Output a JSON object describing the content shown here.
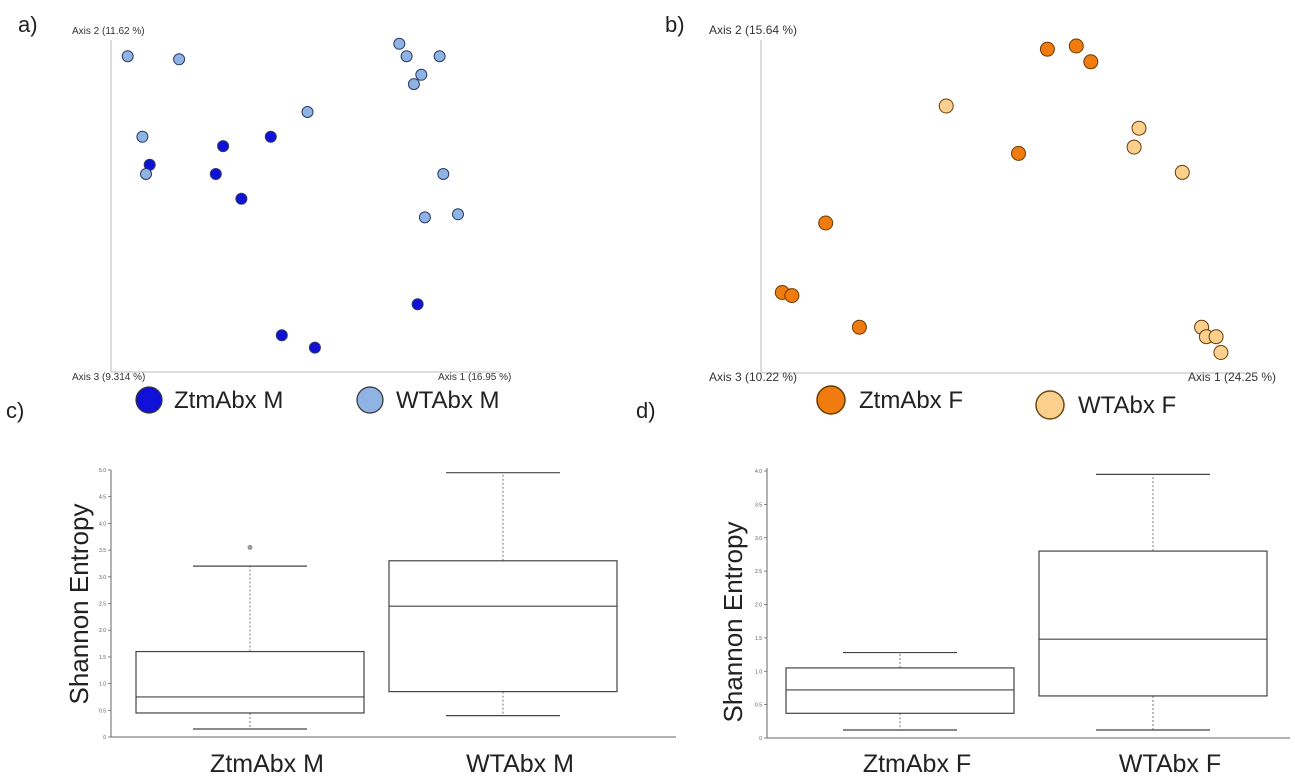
{
  "panels": {
    "a": {
      "letter": "a)"
    },
    "b": {
      "letter": "b)"
    },
    "c": {
      "letter": "c)"
    },
    "d": {
      "letter": "d)"
    }
  },
  "colors": {
    "ztm_m": "#1010d8",
    "wt_m": "#8fb4e3",
    "ztm_f": "#f07b0e",
    "wt_f": "#fbd08e",
    "axis_line": "#bbbbbb",
    "box_line": "#444444"
  },
  "chart_data": [
    {
      "id": "a",
      "type": "scatter",
      "title": "",
      "axis1_label": "Axis 1 (16.95 %)",
      "axis2_label": "Axis 2 (11.62 %)",
      "axis3_label": "Axis 3 (9.314 %)",
      "xlim": [
        0,
        1
      ],
      "ylim": [
        0,
        1
      ],
      "grid": false,
      "legend": {
        "position": "bottom",
        "entries": [
          "ZtmAbx M",
          "WTAbx M"
        ]
      },
      "series": [
        {
          "name": "ZtmAbx M",
          "color_key": "ztm_m",
          "points": [
            [
              0.1,
              0.63
            ],
            [
              0.3,
              0.69
            ],
            [
              0.43,
              0.72
            ],
            [
              0.28,
              0.6
            ],
            [
              0.35,
              0.52
            ],
            [
              0.46,
              0.08
            ],
            [
              0.55,
              0.04
            ],
            [
              0.83,
              0.18
            ]
          ]
        },
        {
          "name": "WTAbx M",
          "color_key": "wt_m",
          "points": [
            [
              0.04,
              0.98
            ],
            [
              0.18,
              0.97
            ],
            [
              0.08,
              0.72
            ],
            [
              0.09,
              0.6
            ],
            [
              0.53,
              0.8
            ],
            [
              0.78,
              1.02
            ],
            [
              0.8,
              0.98
            ],
            [
              0.82,
              0.89
            ],
            [
              0.84,
              0.92
            ],
            [
              0.89,
              0.98
            ],
            [
              0.9,
              0.6
            ],
            [
              0.85,
              0.46
            ],
            [
              0.94,
              0.47
            ]
          ]
        }
      ]
    },
    {
      "id": "b",
      "type": "scatter",
      "title": "",
      "axis1_label": "Axis 1 (24.25 %)",
      "axis2_label": "Axis 2 (15.64 %)",
      "axis3_label": "Axis 3 (10.22 %)",
      "xlim": [
        0,
        1
      ],
      "ylim": [
        0,
        1
      ],
      "grid": false,
      "legend": {
        "position": "bottom",
        "entries": [
          "ZtmAbx F",
          "WTAbx F"
        ]
      },
      "series": [
        {
          "name": "ZtmAbx F",
          "color_key": "ztm_f",
          "points": [
            [
              0.59,
              0.99
            ],
            [
              0.65,
              1.0
            ],
            [
              0.68,
              0.95
            ],
            [
              0.53,
              0.66
            ],
            [
              0.13,
              0.44
            ],
            [
              0.04,
              0.22
            ],
            [
              0.06,
              0.21
            ],
            [
              0.2,
              0.11
            ]
          ]
        },
        {
          "name": "WTAbx F",
          "color_key": "wt_f",
          "points": [
            [
              0.38,
              0.81
            ],
            [
              0.78,
              0.74
            ],
            [
              0.77,
              0.68
            ],
            [
              0.87,
              0.6
            ],
            [
              0.91,
              0.11
            ],
            [
              0.92,
              0.08
            ],
            [
              0.94,
              0.08
            ],
            [
              0.95,
              0.03
            ]
          ]
        }
      ]
    },
    {
      "id": "c",
      "type": "box",
      "title": "",
      "ylabel": "Shannon Entropy",
      "categories": [
        "ZtmAbx M",
        "WTAbx M"
      ],
      "ylim": [
        0,
        5
      ],
      "yticks": [
        "0",
        "0.5",
        "1.0",
        "1.5",
        "2.0",
        "2.5",
        "3.0",
        "3.5",
        "4.0",
        "4.5",
        "5.0"
      ],
      "boxes": [
        {
          "name": "ZtmAbx M",
          "min": 0.15,
          "q1": 0.45,
          "median": 0.75,
          "q3": 1.6,
          "max": 3.2,
          "outliers": [
            3.55
          ]
        },
        {
          "name": "WTAbx M",
          "min": 0.4,
          "q1": 0.85,
          "median": 2.45,
          "q3": 3.3,
          "max": 4.95,
          "outliers": []
        }
      ]
    },
    {
      "id": "d",
      "type": "box",
      "title": "",
      "ylabel": "Shannon Entropy",
      "categories": [
        "ZtmAbx F",
        "WTAbx F"
      ],
      "ylim": [
        0,
        4
      ],
      "yticks": [
        "0",
        "0.5",
        "1.0",
        "1.5",
        "2.0",
        "2.5",
        "3.0",
        "3.5",
        "4.0"
      ],
      "boxes": [
        {
          "name": "ZtmAbx F",
          "min": 0.12,
          "q1": 0.37,
          "median": 0.72,
          "q3": 1.05,
          "max": 1.28,
          "outliers": []
        },
        {
          "name": "WTAbx F",
          "min": 0.12,
          "q1": 0.63,
          "median": 1.48,
          "q3": 2.8,
          "max": 3.95,
          "outliers": []
        }
      ]
    }
  ]
}
